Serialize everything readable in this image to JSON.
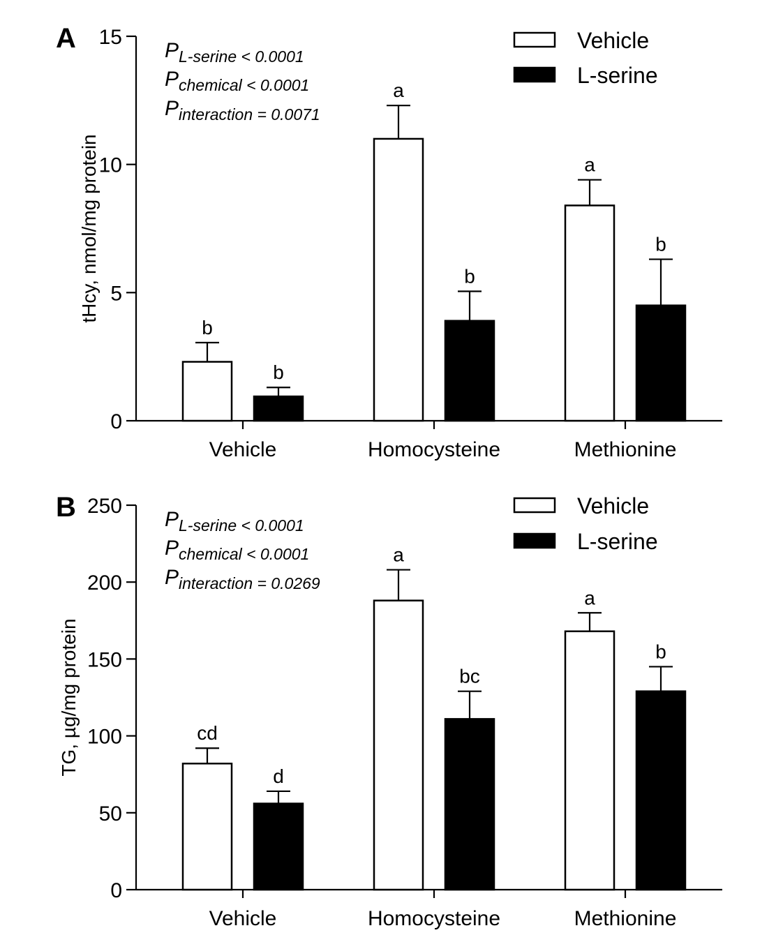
{
  "chart_data": [
    {
      "type": "bar",
      "panel": "A",
      "ylabel": "tHcy, nmol/mg protein",
      "ylim": [
        0,
        15
      ],
      "yticks": [
        0,
        5,
        10,
        15
      ],
      "categories": [
        "Vehicle",
        "Homocysteine",
        "Methionine"
      ],
      "series": [
        {
          "name": "Vehicle",
          "values": [
            2.3,
            11.0,
            8.4
          ],
          "errors": [
            0.75,
            1.3,
            1.0
          ],
          "letters": [
            "b",
            "a",
            "a"
          ],
          "color": "#ffffff"
        },
        {
          "name": "L-serine",
          "values": [
            0.95,
            3.9,
            4.5
          ],
          "errors": [
            0.35,
            1.15,
            1.8
          ],
          "letters": [
            "b",
            "b",
            "b"
          ],
          "color": "#000000"
        }
      ],
      "stats": [
        {
          "p": "P",
          "sub": "L-serine",
          "rest": " < 0.0001"
        },
        {
          "p": "P",
          "sub": "chemical",
          "rest": " < 0.0001"
        },
        {
          "p": "P",
          "sub": "interaction",
          "rest": " = 0.0071"
        }
      ],
      "legend": {
        "position": "top-right",
        "items": [
          "Vehicle",
          "L-serine"
        ]
      }
    },
    {
      "type": "bar",
      "panel": "B",
      "ylabel": "TG, µg/mg protein",
      "ylim": [
        0,
        250
      ],
      "yticks": [
        0,
        50,
        100,
        150,
        200,
        250
      ],
      "categories": [
        "Vehicle",
        "Homocysteine",
        "Methionine"
      ],
      "series": [
        {
          "name": "Vehicle",
          "values": [
            82,
            188,
            168
          ],
          "errors": [
            10,
            20,
            12
          ],
          "letters": [
            "cd",
            "a",
            "a"
          ],
          "color": "#ffffff"
        },
        {
          "name": "L-serine",
          "values": [
            56,
            111,
            129
          ],
          "errors": [
            8,
            18,
            16
          ],
          "letters": [
            "d",
            "bc",
            "b"
          ],
          "color": "#000000"
        }
      ],
      "stats": [
        {
          "p": "P",
          "sub": "L-serine",
          "rest": " < 0.0001"
        },
        {
          "p": "P",
          "sub": "chemical",
          "rest": " < 0.0001"
        },
        {
          "p": "P",
          "sub": "interaction",
          "rest": " = 0.0269"
        }
      ],
      "legend": {
        "position": "top-right",
        "items": [
          "Vehicle",
          "L-serine"
        ]
      }
    }
  ]
}
